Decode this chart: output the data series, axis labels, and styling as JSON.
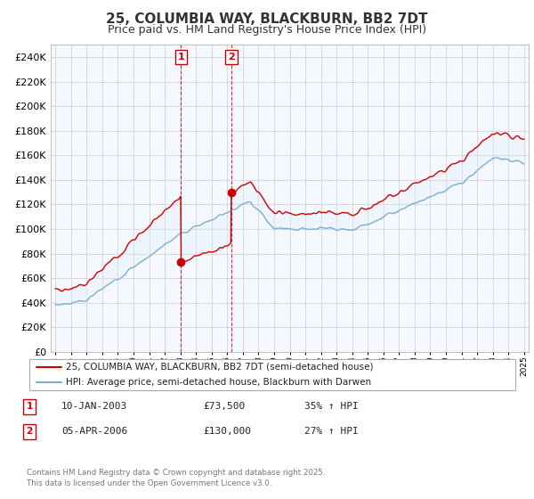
{
  "title": "25, COLUMBIA WAY, BLACKBURN, BB2 7DT",
  "subtitle": "Price paid vs. HM Land Registry's House Price Index (HPI)",
  "ylim": [
    0,
    250000
  ],
  "yticks": [
    0,
    20000,
    40000,
    60000,
    80000,
    100000,
    120000,
    140000,
    160000,
    180000,
    200000,
    220000,
    240000
  ],
  "sale1": {
    "date_num": 2003.04,
    "price": 73500,
    "label": "1"
  },
  "sale2": {
    "date_num": 2006.26,
    "price": 130000,
    "label": "2"
  },
  "legend_red": "25, COLUMBIA WAY, BLACKBURN, BB2 7DT (semi-detached house)",
  "legend_blue": "HPI: Average price, semi-detached house, Blackburn with Darwen",
  "table_rows": [
    {
      "num": "1",
      "date": "10-JAN-2003",
      "price": "£73,500",
      "change": "35% ↑ HPI"
    },
    {
      "num": "2",
      "date": "05-APR-2006",
      "price": "£130,000",
      "change": "27% ↑ HPI"
    }
  ],
  "footer": "Contains HM Land Registry data © Crown copyright and database right 2025.\nThis data is licensed under the Open Government Licence v3.0.",
  "red_color": "#cc0000",
  "blue_color": "#7aafd4",
  "fill_color": "#ddeeff",
  "bg_color": "#ffffff",
  "grid_color": "#cccccc",
  "title_fontsize": 11,
  "subtitle_fontsize": 9,
  "axis_fontsize": 8
}
